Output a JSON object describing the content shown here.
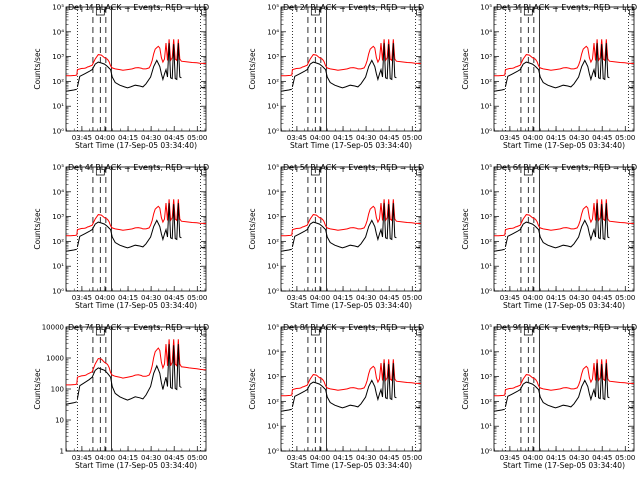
{
  "chart_data": {
    "type": "line",
    "layout": "3x3 grid of log-scale time-series panels",
    "panel_titles": [
      "Det 1f BLACK = Events, RED = LLD",
      "Det 2f BLACK = Events, RED = LLD",
      "Det 3f BLACK = Events, RED = LLD",
      "Det 4f BLACK = Events, RED = LLD",
      "Det 5f BLACK = Events, RED = LLD",
      "Det 6f BLACK = Events, RED = LLD",
      "Det 7f BLACK = Events, RED = LLD",
      "Det 8f BLACK = Events, RED = LLD",
      "Det 9f BLACK = Events, RED = LLD"
    ],
    "ylabel": "Counts/sec",
    "xlabel": "Start Time (17-Sep-05 03:34:40)",
    "x_tick_labels": [
      "03:45",
      "04:00",
      "04:15",
      "04:30",
      "04:45",
      "05:00"
    ],
    "x_ticks_minutes": [
      10.33,
      25.33,
      40.33,
      55.33,
      70.33,
      85.33
    ],
    "xlim_minutes": [
      0,
      91
    ],
    "y_tick_labels_exp": [
      "10⁰",
      "10¹",
      "10²",
      "10³",
      "10⁴",
      "10⁵"
    ],
    "y_tick_labels_dec": [
      "1",
      "10",
      "100",
      "1000",
      "10000"
    ],
    "panel_yaxis": [
      {
        "ylim": [
          1,
          100000
        ],
        "tick_style": "exp"
      },
      {
        "ylim": [
          1,
          100000
        ],
        "tick_style": "exp"
      },
      {
        "ylim": [
          1,
          100000
        ],
        "tick_style": "exp"
      },
      {
        "ylim": [
          1,
          100000
        ],
        "tick_style": "exp"
      },
      {
        "ylim": [
          1,
          100000
        ],
        "tick_style": "exp"
      },
      {
        "ylim": [
          1,
          100000
        ],
        "tick_style": "exp"
      },
      {
        "ylim": [
          1,
          10000
        ],
        "tick_style": "dec"
      },
      {
        "ylim": [
          1,
          100000
        ],
        "tick_style": "exp"
      },
      {
        "ylim": [
          1,
          100000
        ],
        "tick_style": "exp"
      }
    ],
    "vertical_markers_minutes": {
      "dotted": [
        7.4,
        87.5
      ],
      "dashed": [
        17.5,
        22.3,
        25.9
      ],
      "solid": [
        29.5
      ]
    },
    "series_names": [
      "Events",
      "LLD"
    ],
    "series_colors": {
      "Events": "#000000",
      "LLD": "#ff0000"
    },
    "lld_series": {
      "name": "LLD",
      "color": "#ff0000",
      "points": [
        [
          0,
          170
        ],
        [
          3,
          170
        ],
        [
          6,
          175
        ],
        [
          7,
          180
        ],
        [
          7.4,
          300
        ],
        [
          10,
          330
        ],
        [
          12,
          340
        ],
        [
          13,
          350
        ],
        [
          14,
          380
        ],
        [
          15,
          400
        ],
        [
          17,
          450
        ],
        [
          19,
          800
        ],
        [
          21,
          1200
        ],
        [
          23,
          1150
        ],
        [
          25,
          900
        ],
        [
          27,
          780
        ],
        [
          28,
          620
        ],
        [
          29,
          420
        ],
        [
          30,
          350
        ],
        [
          32,
          320
        ],
        [
          35,
          300
        ],
        [
          37,
          280
        ],
        [
          40,
          300
        ],
        [
          43,
          320
        ],
        [
          45,
          350
        ],
        [
          47,
          360
        ],
        [
          49,
          340
        ],
        [
          50,
          320
        ],
        [
          52,
          320
        ],
        [
          54,
          350
        ],
        [
          55,
          450
        ],
        [
          56,
          700
        ],
        [
          57,
          1300
        ],
        [
          58,
          2000
        ],
        [
          59,
          2300
        ],
        [
          60,
          2600
        ],
        [
          61,
          2200
        ],
        [
          62,
          900
        ],
        [
          63,
          600
        ],
        [
          64,
          800
        ],
        [
          65,
          3500
        ],
        [
          66,
          700
        ],
        [
          67,
          5000
        ],
        [
          68,
          700
        ],
        [
          69,
          900
        ],
        [
          70,
          5000
        ],
        [
          71,
          800
        ],
        [
          72,
          700
        ],
        [
          73,
          5000
        ],
        [
          74,
          800
        ],
        [
          75,
          650
        ],
        [
          78,
          620
        ],
        [
          80,
          600
        ],
        [
          82,
          580
        ],
        [
          85,
          560
        ],
        [
          87,
          540
        ],
        [
          89,
          530
        ],
        [
          91,
          520
        ]
      ]
    },
    "events_series": {
      "name": "Events",
      "color": "#000000",
      "segments": [
        [
          [
            0,
            40
          ],
          [
            5,
            45
          ],
          [
            7,
            48
          ]
        ],
        [
          [
            7.4,
            60
          ],
          [
            9,
            160
          ],
          [
            12,
            200
          ],
          [
            15,
            250
          ],
          [
            17,
            300
          ],
          [
            19,
            500
          ],
          [
            21,
            600
          ],
          [
            23,
            550
          ],
          [
            25,
            500
          ],
          [
            27,
            400
          ],
          [
            29,
            300
          ],
          [
            30,
            150
          ],
          [
            32,
            90
          ],
          [
            35,
            70
          ],
          [
            38,
            60
          ],
          [
            40,
            55
          ],
          [
            42,
            60
          ],
          [
            45,
            70
          ],
          [
            48,
            65
          ],
          [
            50,
            60
          ],
          [
            52,
            80
          ],
          [
            55,
            150
          ],
          [
            57,
            400
          ],
          [
            59,
            700
          ],
          [
            61,
            400
          ],
          [
            62,
            200
          ],
          [
            63,
            120
          ],
          [
            64,
            200
          ],
          [
            65,
            300
          ],
          [
            66,
            150
          ],
          [
            67,
            3500
          ],
          [
            68,
            140
          ],
          [
            69,
            130
          ],
          [
            70,
            3200
          ],
          [
            71,
            130
          ],
          [
            72,
            120
          ],
          [
            73,
            3500
          ],
          [
            74,
            150
          ],
          [
            75,
            140
          ]
        ],
        [
          [
            87.5,
            60
          ],
          [
            89,
            55
          ],
          [
            90.5,
            58
          ]
        ]
      ]
    }
  }
}
